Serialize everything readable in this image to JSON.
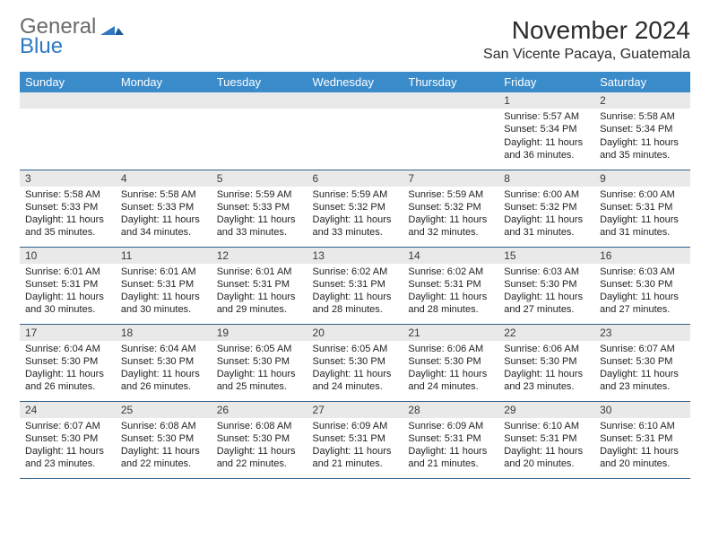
{
  "logo": {
    "general": "General",
    "blue": "Blue"
  },
  "title": "November 2024",
  "location": "San Vicente Pacaya, Guatemala",
  "colors": {
    "header_bg": "#3a8bca",
    "header_text": "#ffffff",
    "daynum_bg": "#e9e9e9",
    "row_divider": "#2f5f8a",
    "logo_gray": "#6a6a6a",
    "logo_blue": "#2f79c2"
  },
  "day_headers": [
    "Sunday",
    "Monday",
    "Tuesday",
    "Wednesday",
    "Thursday",
    "Friday",
    "Saturday"
  ],
  "weeks": [
    [
      {
        "num": "",
        "sunrise": "",
        "sunset": "",
        "daylight": ""
      },
      {
        "num": "",
        "sunrise": "",
        "sunset": "",
        "daylight": ""
      },
      {
        "num": "",
        "sunrise": "",
        "sunset": "",
        "daylight": ""
      },
      {
        "num": "",
        "sunrise": "",
        "sunset": "",
        "daylight": ""
      },
      {
        "num": "",
        "sunrise": "",
        "sunset": "",
        "daylight": ""
      },
      {
        "num": "1",
        "sunrise": "Sunrise: 5:57 AM",
        "sunset": "Sunset: 5:34 PM",
        "daylight": "Daylight: 11 hours and 36 minutes."
      },
      {
        "num": "2",
        "sunrise": "Sunrise: 5:58 AM",
        "sunset": "Sunset: 5:34 PM",
        "daylight": "Daylight: 11 hours and 35 minutes."
      }
    ],
    [
      {
        "num": "3",
        "sunrise": "Sunrise: 5:58 AM",
        "sunset": "Sunset: 5:33 PM",
        "daylight": "Daylight: 11 hours and 35 minutes."
      },
      {
        "num": "4",
        "sunrise": "Sunrise: 5:58 AM",
        "sunset": "Sunset: 5:33 PM",
        "daylight": "Daylight: 11 hours and 34 minutes."
      },
      {
        "num": "5",
        "sunrise": "Sunrise: 5:59 AM",
        "sunset": "Sunset: 5:33 PM",
        "daylight": "Daylight: 11 hours and 33 minutes."
      },
      {
        "num": "6",
        "sunrise": "Sunrise: 5:59 AM",
        "sunset": "Sunset: 5:32 PM",
        "daylight": "Daylight: 11 hours and 33 minutes."
      },
      {
        "num": "7",
        "sunrise": "Sunrise: 5:59 AM",
        "sunset": "Sunset: 5:32 PM",
        "daylight": "Daylight: 11 hours and 32 minutes."
      },
      {
        "num": "8",
        "sunrise": "Sunrise: 6:00 AM",
        "sunset": "Sunset: 5:32 PM",
        "daylight": "Daylight: 11 hours and 31 minutes."
      },
      {
        "num": "9",
        "sunrise": "Sunrise: 6:00 AM",
        "sunset": "Sunset: 5:31 PM",
        "daylight": "Daylight: 11 hours and 31 minutes."
      }
    ],
    [
      {
        "num": "10",
        "sunrise": "Sunrise: 6:01 AM",
        "sunset": "Sunset: 5:31 PM",
        "daylight": "Daylight: 11 hours and 30 minutes."
      },
      {
        "num": "11",
        "sunrise": "Sunrise: 6:01 AM",
        "sunset": "Sunset: 5:31 PM",
        "daylight": "Daylight: 11 hours and 30 minutes."
      },
      {
        "num": "12",
        "sunrise": "Sunrise: 6:01 AM",
        "sunset": "Sunset: 5:31 PM",
        "daylight": "Daylight: 11 hours and 29 minutes."
      },
      {
        "num": "13",
        "sunrise": "Sunrise: 6:02 AM",
        "sunset": "Sunset: 5:31 PM",
        "daylight": "Daylight: 11 hours and 28 minutes."
      },
      {
        "num": "14",
        "sunrise": "Sunrise: 6:02 AM",
        "sunset": "Sunset: 5:31 PM",
        "daylight": "Daylight: 11 hours and 28 minutes."
      },
      {
        "num": "15",
        "sunrise": "Sunrise: 6:03 AM",
        "sunset": "Sunset: 5:30 PM",
        "daylight": "Daylight: 11 hours and 27 minutes."
      },
      {
        "num": "16",
        "sunrise": "Sunrise: 6:03 AM",
        "sunset": "Sunset: 5:30 PM",
        "daylight": "Daylight: 11 hours and 27 minutes."
      }
    ],
    [
      {
        "num": "17",
        "sunrise": "Sunrise: 6:04 AM",
        "sunset": "Sunset: 5:30 PM",
        "daylight": "Daylight: 11 hours and 26 minutes."
      },
      {
        "num": "18",
        "sunrise": "Sunrise: 6:04 AM",
        "sunset": "Sunset: 5:30 PM",
        "daylight": "Daylight: 11 hours and 26 minutes."
      },
      {
        "num": "19",
        "sunrise": "Sunrise: 6:05 AM",
        "sunset": "Sunset: 5:30 PM",
        "daylight": "Daylight: 11 hours and 25 minutes."
      },
      {
        "num": "20",
        "sunrise": "Sunrise: 6:05 AM",
        "sunset": "Sunset: 5:30 PM",
        "daylight": "Daylight: 11 hours and 24 minutes."
      },
      {
        "num": "21",
        "sunrise": "Sunrise: 6:06 AM",
        "sunset": "Sunset: 5:30 PM",
        "daylight": "Daylight: 11 hours and 24 minutes."
      },
      {
        "num": "22",
        "sunrise": "Sunrise: 6:06 AM",
        "sunset": "Sunset: 5:30 PM",
        "daylight": "Daylight: 11 hours and 23 minutes."
      },
      {
        "num": "23",
        "sunrise": "Sunrise: 6:07 AM",
        "sunset": "Sunset: 5:30 PM",
        "daylight": "Daylight: 11 hours and 23 minutes."
      }
    ],
    [
      {
        "num": "24",
        "sunrise": "Sunrise: 6:07 AM",
        "sunset": "Sunset: 5:30 PM",
        "daylight": "Daylight: 11 hours and 23 minutes."
      },
      {
        "num": "25",
        "sunrise": "Sunrise: 6:08 AM",
        "sunset": "Sunset: 5:30 PM",
        "daylight": "Daylight: 11 hours and 22 minutes."
      },
      {
        "num": "26",
        "sunrise": "Sunrise: 6:08 AM",
        "sunset": "Sunset: 5:30 PM",
        "daylight": "Daylight: 11 hours and 22 minutes."
      },
      {
        "num": "27",
        "sunrise": "Sunrise: 6:09 AM",
        "sunset": "Sunset: 5:31 PM",
        "daylight": "Daylight: 11 hours and 21 minutes."
      },
      {
        "num": "28",
        "sunrise": "Sunrise: 6:09 AM",
        "sunset": "Sunset: 5:31 PM",
        "daylight": "Daylight: 11 hours and 21 minutes."
      },
      {
        "num": "29",
        "sunrise": "Sunrise: 6:10 AM",
        "sunset": "Sunset: 5:31 PM",
        "daylight": "Daylight: 11 hours and 20 minutes."
      },
      {
        "num": "30",
        "sunrise": "Sunrise: 6:10 AM",
        "sunset": "Sunset: 5:31 PM",
        "daylight": "Daylight: 11 hours and 20 minutes."
      }
    ]
  ]
}
